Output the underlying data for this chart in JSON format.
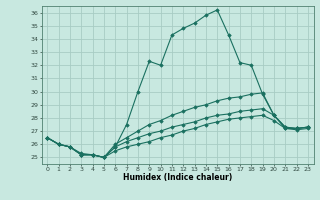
{
  "xlabel": "Humidex (Indice chaleur)",
  "bg_color": "#c8e8e0",
  "grid_color": "#a8ccc4",
  "line_color": "#1a7060",
  "xlim": [
    -0.5,
    23.5
  ],
  "ylim": [
    24.5,
    36.5
  ],
  "yticks": [
    25,
    26,
    27,
    28,
    29,
    30,
    31,
    32,
    33,
    34,
    35,
    36
  ],
  "xticks": [
    0,
    1,
    2,
    3,
    4,
    5,
    6,
    7,
    8,
    9,
    10,
    11,
    12,
    13,
    14,
    15,
    16,
    17,
    18,
    19,
    20,
    21,
    22,
    23
  ],
  "lines": [
    {
      "x": [
        0,
        1,
        2,
        3,
        4,
        5,
        6,
        7,
        8,
        9,
        10,
        11,
        12,
        13,
        14,
        15,
        16,
        17,
        18,
        19,
        20,
        21,
        22,
        23
      ],
      "y": [
        26.5,
        26.0,
        25.8,
        25.2,
        25.2,
        25.0,
        25.8,
        27.5,
        30.0,
        32.3,
        32.0,
        34.3,
        34.8,
        35.2,
        35.8,
        36.2,
        34.3,
        32.2,
        32.0,
        29.8,
        28.2,
        27.2,
        27.2,
        27.3
      ]
    },
    {
      "x": [
        0,
        1,
        2,
        3,
        4,
        5,
        6,
        7,
        8,
        9,
        10,
        11,
        12,
        13,
        14,
        15,
        16,
        17,
        18,
        19,
        20,
        21,
        22,
        23
      ],
      "y": [
        26.5,
        26.0,
        25.8,
        25.3,
        25.2,
        25.0,
        26.0,
        26.5,
        27.0,
        27.5,
        27.8,
        28.2,
        28.5,
        28.8,
        29.0,
        29.3,
        29.5,
        29.6,
        29.8,
        29.9,
        28.2,
        27.3,
        27.2,
        27.3
      ]
    },
    {
      "x": [
        0,
        1,
        2,
        3,
        4,
        5,
        6,
        7,
        8,
        9,
        10,
        11,
        12,
        13,
        14,
        15,
        16,
        17,
        18,
        19,
        20,
        21,
        22,
        23
      ],
      "y": [
        26.5,
        26.0,
        25.8,
        25.2,
        25.2,
        25.0,
        25.8,
        26.2,
        26.5,
        26.8,
        27.0,
        27.3,
        27.5,
        27.7,
        28.0,
        28.2,
        28.3,
        28.5,
        28.6,
        28.7,
        28.2,
        27.3,
        27.2,
        27.3
      ]
    },
    {
      "x": [
        0,
        1,
        2,
        3,
        4,
        5,
        6,
        7,
        8,
        9,
        10,
        11,
        12,
        13,
        14,
        15,
        16,
        17,
        18,
        19,
        20,
        21,
        22,
        23
      ],
      "y": [
        26.5,
        26.0,
        25.8,
        25.2,
        25.2,
        25.0,
        25.5,
        25.8,
        26.0,
        26.2,
        26.5,
        26.7,
        27.0,
        27.2,
        27.5,
        27.7,
        27.9,
        28.0,
        28.1,
        28.2,
        27.8,
        27.2,
        27.1,
        27.2
      ]
    }
  ]
}
